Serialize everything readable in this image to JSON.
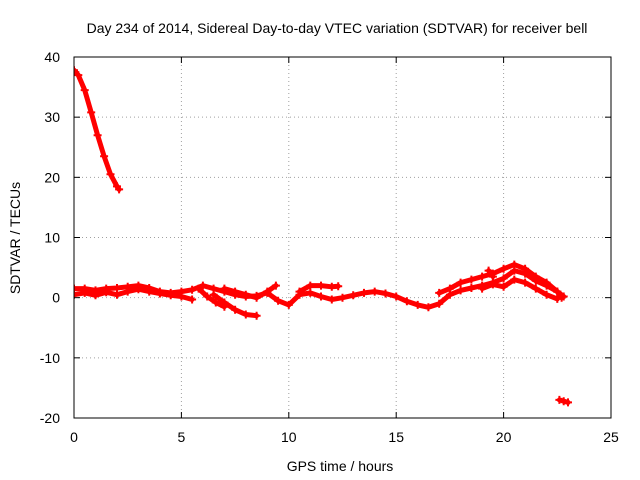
{
  "chart_data": {
    "type": "scatter",
    "title": "Day 234 of 2014, Sidereal Day-to-day VTEC variation (SDTVAR) for receiver bell",
    "xlabel": "GPS time / hours",
    "ylabel": "SDTVAR / TECUs",
    "xlim": [
      0,
      25
    ],
    "ylim": [
      -20,
      40
    ],
    "xticks": [
      0,
      5,
      10,
      15,
      20,
      25
    ],
    "yticks": [
      -20,
      -10,
      0,
      10,
      20,
      30,
      40
    ],
    "grid": true,
    "marker": "plus",
    "series": [
      {
        "name": "SDTVAR",
        "color": "#ff0000",
        "segments": [
          {
            "x": [
              0.0,
              0.2,
              0.5,
              0.8,
              1.1,
              1.4,
              1.7,
              2.0,
              2.1
            ],
            "y": [
              37.8,
              37.0,
              34.5,
              30.8,
              27.0,
              23.5,
              20.5,
              18.5,
              18.0
            ]
          },
          {
            "x": [
              0.0,
              0.5,
              1.0,
              1.5,
              2.0,
              2.5,
              3.0,
              3.5,
              4.0,
              4.5,
              5.0,
              5.5,
              6.0,
              6.5,
              7.0,
              7.5,
              8.0,
              8.5,
              9.0,
              9.5,
              10.0,
              10.5,
              11.0,
              11.5,
              12.0,
              12.5,
              13.0,
              13.5,
              14.0,
              14.5,
              15.0,
              15.5,
              16.0,
              16.5,
              17.0,
              17.5,
              18.0,
              18.5,
              19.0,
              19.5,
              20.0,
              20.5,
              21.0,
              21.5,
              22.0,
              22.5,
              22.8
            ],
            "y": [
              1.5,
              1.5,
              1.2,
              1.5,
              1.6,
              1.8,
              2.0,
              1.6,
              1.0,
              0.8,
              1.0,
              1.3,
              2.0,
              1.5,
              1.0,
              0.5,
              0.2,
              0.3,
              0.8,
              -0.5,
              -1.2,
              0.5,
              0.8,
              0.2,
              -0.3,
              0.0,
              0.4,
              0.8,
              1.0,
              0.7,
              0.2,
              -0.6,
              -1.2,
              -1.6,
              -1.0,
              0.5,
              1.2,
              1.6,
              2.0,
              2.5,
              3.2,
              4.5,
              4.0,
              2.8,
              2.0,
              1.0,
              0.2
            ]
          },
          {
            "x": [
              0.0,
              0.5,
              1.0,
              1.5,
              2.0,
              2.5,
              3.0,
              3.5,
              4.0,
              4.5,
              5.0,
              5.5
            ],
            "y": [
              0.5,
              0.8,
              0.4,
              0.9,
              0.5,
              1.0,
              1.4,
              1.0,
              0.7,
              0.4,
              0.2,
              -0.3
            ]
          },
          {
            "x": [
              6.5,
              7.0,
              7.5,
              8.0,
              8.5
            ],
            "y": [
              0.5,
              -0.8,
              -2.0,
              -2.8,
              -3.0
            ]
          },
          {
            "x": [
              5.8,
              6.2,
              6.6,
              7.0
            ],
            "y": [
              1.5,
              0.2,
              -0.8,
              -1.5
            ]
          },
          {
            "x": [
              7.0,
              7.5,
              8.0,
              8.5,
              9.0,
              9.4
            ],
            "y": [
              1.5,
              1.0,
              0.5,
              0.0,
              1.0,
              2.0
            ]
          },
          {
            "x": [
              10.5,
              11.0,
              11.5,
              12.0,
              12.3
            ],
            "y": [
              1.0,
              2.0,
              2.0,
              1.8,
              1.9
            ]
          },
          {
            "x": [
              17.0,
              17.5,
              18.0,
              18.5,
              19.0,
              19.5,
              20.0,
              20.5,
              21.0,
              21.5,
              22.0,
              22.5,
              22.7
            ],
            "y": [
              0.8,
              1.5,
              2.5,
              3.0,
              3.5,
              4.0,
              4.8,
              5.5,
              4.8,
              3.5,
              2.5,
              1.0,
              0.0
            ]
          },
          {
            "x": [
              19.0,
              19.5,
              20.0,
              20.5,
              21.0,
              21.5,
              22.0,
              22.5
            ],
            "y": [
              1.5,
              2.2,
              1.8,
              3.0,
              2.5,
              1.5,
              0.5,
              -0.2
            ]
          },
          {
            "x": [
              19.3,
              19.5
            ],
            "y": [
              4.5,
              3.5
            ]
          },
          {
            "x": [
              22.6,
              22.8,
              23.0
            ],
            "y": [
              -17.0,
              -17.2,
              -17.4
            ]
          }
        ]
      }
    ]
  }
}
